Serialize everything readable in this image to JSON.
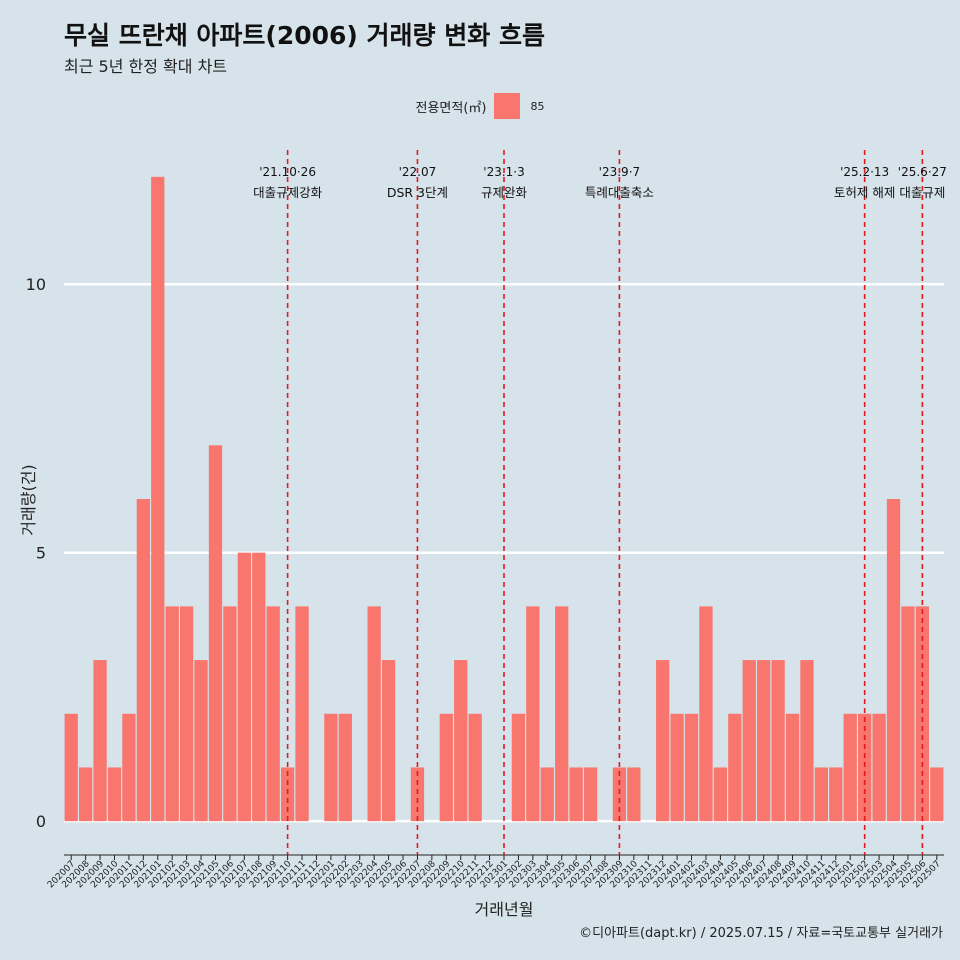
{
  "title": "무실 뜨란채 아파트(2006) 거래량 변화 흐름",
  "subtitle": "최근 5년 한정 확대 차트",
  "caption": "©디아파트(dapt.kr) / 2025.07.15 / 자료=국토교통부 실거래가",
  "legend": {
    "title": "전용면적(㎡)",
    "items": [
      {
        "label": "85",
        "color": "#f8766d"
      }
    ]
  },
  "colors": {
    "background": "#d6e3ea",
    "bar": "#f8766d",
    "event_line": "#e31a1c",
    "grid": "#ffffff"
  },
  "chart_data": {
    "type": "bar",
    "xlabel": "거래년월",
    "ylabel": "거래량(건)",
    "ylim": [
      -0.5,
      12.5
    ],
    "yticks": [
      0,
      5,
      10
    ],
    "grid": "horizontal",
    "legend_position": "top",
    "categories": [
      "202007",
      "202008",
      "202009",
      "202010",
      "202011",
      "202012",
      "202101",
      "202102",
      "202103",
      "202104",
      "202105",
      "202106",
      "202107",
      "202108",
      "202109",
      "202110",
      "202111",
      "202112",
      "202201",
      "202202",
      "202203",
      "202204",
      "202205",
      "202206",
      "202207",
      "202208",
      "202209",
      "202210",
      "202211",
      "202212",
      "202301",
      "202302",
      "202303",
      "202304",
      "202305",
      "202306",
      "202307",
      "202308",
      "202309",
      "202310",
      "202311",
      "202312",
      "202401",
      "202402",
      "202403",
      "202404",
      "202405",
      "202406",
      "202407",
      "202408",
      "202409",
      "202410",
      "202411",
      "202412",
      "202501",
      "202502",
      "202503",
      "202504",
      "202505",
      "202506",
      "202507"
    ],
    "series": [
      {
        "name": "85",
        "values": [
          2,
          1,
          3,
          1,
          2,
          6,
          12,
          4,
          4,
          3,
          7,
          4,
          5,
          5,
          4,
          1,
          4,
          0,
          2,
          2,
          0,
          4,
          3,
          0,
          1,
          0,
          2,
          3,
          2,
          0,
          0,
          2,
          4,
          1,
          4,
          1,
          1,
          0,
          1,
          1,
          0,
          3,
          2,
          2,
          4,
          1,
          2,
          3,
          3,
          3,
          2,
          3,
          1,
          1,
          2,
          2,
          2,
          6,
          4,
          4,
          1
        ]
      }
    ],
    "annotations": [
      {
        "date_line1": "'21.10·26",
        "date_line2": "대출규제강화",
        "x_position": "202110"
      },
      {
        "date_line1": "'22.07",
        "date_line2": "DSR 3단계",
        "x_position": "202207"
      },
      {
        "date_line1": "'23.1·3",
        "date_line2": "규제완화",
        "x_position": "202301"
      },
      {
        "date_line1": "'23.9·7",
        "date_line2": "특례대출축소",
        "x_position": "202309"
      },
      {
        "date_line1": "'25.2·13",
        "date_line2": "토허제 해제",
        "x_position": "202502"
      },
      {
        "date_line1": "'25.6·27",
        "date_line2": "대출규제",
        "x_position": "202506"
      }
    ]
  }
}
